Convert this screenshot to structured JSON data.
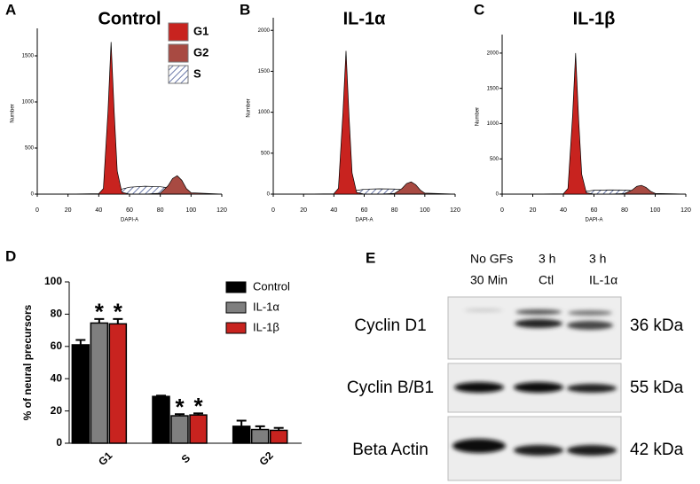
{
  "chart_data": [
    {
      "type": "area",
      "panel": "A",
      "title": "Control",
      "xlabel": "DAPI-A",
      "ylabel": "Number",
      "x": [
        0,
        20,
        40,
        43,
        46,
        48,
        50,
        52,
        55,
        60,
        70,
        80,
        85,
        88,
        91,
        94,
        97,
        100,
        120
      ],
      "series": [
        {
          "name": "G1",
          "color": "#c8231f",
          "values": [
            0,
            0,
            5,
            60,
            900,
            1650,
            900,
            250,
            20,
            0,
            0,
            0,
            0,
            0,
            0,
            0,
            0,
            0,
            0
          ]
        },
        {
          "name": "G2",
          "color": "#a84a42",
          "values": [
            0,
            0,
            0,
            0,
            0,
            0,
            0,
            0,
            0,
            0,
            0,
            10,
            90,
            170,
            200,
            150,
            60,
            15,
            0
          ]
        },
        {
          "name": "S",
          "color": "#8a9ac8",
          "values": [
            0,
            0,
            0,
            0,
            10,
            20,
            30,
            40,
            55,
            75,
            85,
            80,
            70,
            50,
            30,
            10,
            3,
            0,
            0
          ]
        }
      ],
      "xlim": [
        0,
        120
      ],
      "xticks": [
        0,
        20,
        40,
        60,
        80,
        100,
        120
      ],
      "ylim": [
        0,
        1750
      ],
      "yticks": [
        0,
        500,
        1000,
        1500
      ],
      "legend": "upper right"
    },
    {
      "type": "area",
      "panel": "B",
      "title": "IL-1α",
      "xlabel": "DAPI-A",
      "ylabel": "Number",
      "x": [
        0,
        20,
        40,
        43,
        46,
        48,
        50,
        52,
        55,
        60,
        70,
        80,
        85,
        88,
        91,
        94,
        97,
        100,
        120
      ],
      "series": [
        {
          "color": "#c8231f",
          "values": [
            0,
            0,
            5,
            70,
            1000,
            1750,
            950,
            260,
            20,
            0,
            0,
            0,
            0,
            0,
            0,
            0,
            0,
            0,
            0
          ]
        },
        {
          "color": "#a84a42",
          "values": [
            0,
            0,
            0,
            0,
            0,
            0,
            0,
            0,
            0,
            0,
            0,
            8,
            70,
            130,
            150,
            115,
            50,
            12,
            0
          ]
        },
        {
          "color": "#8a9ac8",
          "values": [
            0,
            0,
            0,
            0,
            8,
            15,
            22,
            30,
            45,
            60,
            65,
            62,
            55,
            40,
            25,
            8,
            2,
            0,
            0
          ]
        }
      ],
      "xlim": [
        0,
        120
      ],
      "xticks": [
        0,
        20,
        40,
        60,
        80,
        100,
        120
      ],
      "ylim": [
        0,
        2100
      ],
      "yticks": [
        0,
        500,
        1000,
        1500,
        2000
      ]
    },
    {
      "type": "area",
      "panel": "C",
      "title": "IL-1β",
      "xlabel": "DAPI-A",
      "ylabel": "Number",
      "x": [
        0,
        20,
        40,
        43,
        46,
        48,
        50,
        52,
        55,
        60,
        70,
        80,
        85,
        88,
        91,
        94,
        97,
        100,
        120
      ],
      "series": [
        {
          "color": "#c8231f",
          "values": [
            0,
            0,
            5,
            80,
            1100,
            2000,
            1050,
            280,
            20,
            0,
            0,
            0,
            0,
            0,
            0,
            0,
            0,
            0,
            0
          ]
        },
        {
          "color": "#a84a42",
          "values": [
            0,
            0,
            0,
            0,
            0,
            0,
            0,
            0,
            0,
            0,
            0,
            8,
            60,
            110,
            125,
            95,
            40,
            10,
            0
          ]
        },
        {
          "color": "#8a9ac8",
          "values": [
            0,
            0,
            0,
            0,
            8,
            15,
            20,
            28,
            40,
            55,
            60,
            58,
            50,
            35,
            22,
            7,
            2,
            0,
            0
          ]
        }
      ],
      "xlim": [
        0,
        120
      ],
      "xticks": [
        0,
        20,
        40,
        60,
        80,
        100,
        120
      ],
      "ylim": [
        0,
        2200
      ],
      "yticks": [
        0,
        500,
        1000,
        1500,
        2000
      ]
    },
    {
      "type": "bar",
      "panel": "D",
      "ylabel": "% of neural precursors",
      "categories": [
        "G1",
        "S",
        "G2"
      ],
      "series": [
        {
          "name": "Control",
          "color": "#000000",
          "values": [
            61,
            29,
            10.5
          ],
          "errors": [
            3,
            0.5,
            3.5
          ]
        },
        {
          "name": "IL-1α",
          "color": "#7f7f7f",
          "values": [
            74.5,
            17,
            8.5
          ],
          "errors": [
            2.5,
            1,
            2
          ],
          "labels": [
            "*",
            "*",
            null
          ]
        },
        {
          "name": "IL-1β",
          "color": "#c8231f",
          "values": [
            74,
            17.5,
            8
          ],
          "errors": [
            3,
            1,
            1.5
          ],
          "labels": [
            "*",
            "*",
            null
          ]
        }
      ],
      "ylim": [
        0,
        100
      ],
      "yticks": [
        0,
        20,
        40,
        60,
        80,
        100
      ],
      "legend": "upper right"
    }
  ],
  "blot": {
    "panel": "E",
    "columns": [
      [
        "No GFs",
        "30 Min"
      ],
      [
        "3 h",
        "Ctl"
      ],
      [
        "3 h",
        "IL-1α"
      ]
    ],
    "rows": [
      {
        "protein": "Cyclin D1",
        "size": "36 kDa"
      },
      {
        "protein": "Cyclin B/B1",
        "size": "55 kDa"
      },
      {
        "protein": "Beta Actin",
        "size": "42 kDa"
      }
    ]
  }
}
